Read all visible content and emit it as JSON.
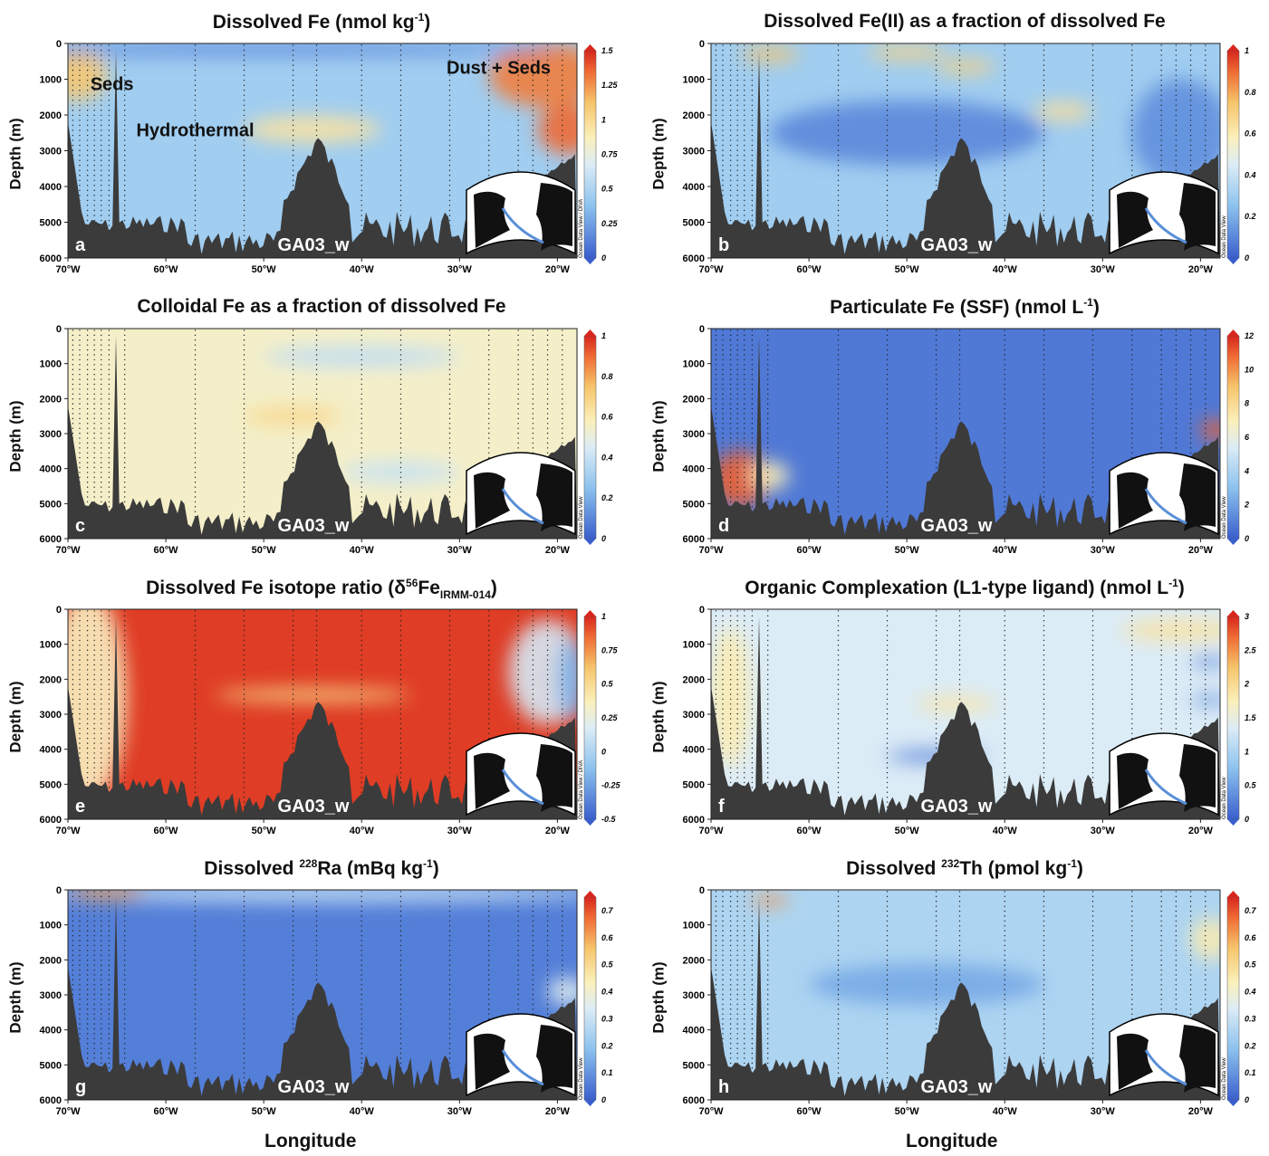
{
  "figure": {
    "x_axis_label": "Longitude",
    "y_axis_label": "Depth (m)"
  },
  "chart_data": [
    {
      "id": "a",
      "type": "heatmap",
      "title": "Dissolved Fe (nmol kg⁻¹)",
      "title_parts": {
        "pre": "Dissolved Fe (nmol kg",
        "sup": "-1",
        "post": ")"
      },
      "ylabel": "Depth (m)",
      "section": "GA03_w",
      "x_ticks": [
        "70°W",
        "60°W",
        "50°W",
        "40°W",
        "30°W",
        "20°W"
      ],
      "y_ticks": [
        0,
        1000,
        2000,
        3000,
        4000,
        5000,
        6000
      ],
      "xlim": [
        -70,
        -18
      ],
      "ylim": [
        6000,
        0
      ],
      "colorbar": {
        "min": 0,
        "max": 1.5,
        "ticks": [
          "0",
          "0.25",
          "0.5",
          "0.75",
          "1",
          "1.25",
          "1.5"
        ],
        "caption": "Ocean Data View / DIVA",
        "scale": "bwr"
      },
      "annotations": [
        "Seds",
        "Hydrothermal",
        "Dust + Seds"
      ],
      "background_value": 0.45,
      "features": [
        {
          "lon": -69,
          "depth": 900,
          "rx": 3,
          "ry": 700,
          "v": 1.1
        },
        {
          "lon": -45,
          "depth": 2400,
          "rx": 7,
          "ry": 380,
          "v": 0.95
        },
        {
          "lon": -21,
          "depth": 900,
          "rx": 6,
          "ry": 900,
          "v": 1.3
        },
        {
          "lon": -19,
          "depth": 2400,
          "rx": 3,
          "ry": 700,
          "v": 1.35
        },
        {
          "lon": -50,
          "depth": 150,
          "rx": 30,
          "ry": 180,
          "v": 0.15
        }
      ]
    },
    {
      "id": "b",
      "type": "heatmap",
      "title": "Dissolved Fe(II) as a fraction of dissolved Fe",
      "title_parts": {
        "pre": "Dissolved Fe(II) as a fraction of dissolved Fe",
        "sup": "",
        "post": ""
      },
      "ylabel": "Depth (m)",
      "section": "GA03_w",
      "x_ticks": [
        "70°W",
        "60°W",
        "50°W",
        "40°W",
        "30°W",
        "20°W"
      ],
      "y_ticks": [
        0,
        1000,
        2000,
        3000,
        4000,
        5000,
        6000
      ],
      "xlim": [
        -70,
        -18
      ],
      "ylim": [
        6000,
        0
      ],
      "colorbar": {
        "min": 0,
        "max": 1,
        "ticks": [
          "0",
          "0.2",
          "0.4",
          "0.6",
          "0.8",
          "1"
        ],
        "caption": "Ocean Data View",
        "scale": "bwr"
      },
      "annotations": [],
      "background_value": 0.3,
      "features": [
        {
          "lon": -64,
          "depth": 300,
          "rx": 3,
          "ry": 200,
          "v": 0.75
        },
        {
          "lon": -50,
          "depth": 250,
          "rx": 4,
          "ry": 200,
          "v": 0.7
        },
        {
          "lon": -44,
          "depth": 650,
          "rx": 3,
          "ry": 200,
          "v": 0.7
        },
        {
          "lon": -34,
          "depth": 1900,
          "rx": 3,
          "ry": 250,
          "v": 0.65
        },
        {
          "lon": -50,
          "depth": 2500,
          "rx": 14,
          "ry": 900,
          "v": 0.1
        },
        {
          "lon": -22,
          "depth": 2500,
          "rx": 5,
          "ry": 1500,
          "v": 0.12
        }
      ]
    },
    {
      "id": "c",
      "type": "heatmap",
      "title": "Colloidal Fe as a fraction of dissolved Fe",
      "title_parts": {
        "pre": "Colloidal Fe as a fraction of dissolved Fe",
        "sup": "",
        "post": ""
      },
      "ylabel": "Depth (m)",
      "section": "GA03_w",
      "x_ticks": [
        "70°W",
        "60°W",
        "50°W",
        "40°W",
        "30°W",
        "20°W"
      ],
      "y_ticks": [
        0,
        1000,
        2000,
        3000,
        4000,
        5000,
        6000
      ],
      "xlim": [
        -70,
        -18
      ],
      "ylim": [
        6000,
        0
      ],
      "colorbar": {
        "min": 0,
        "max": 1,
        "ticks": [
          "0",
          "0.2",
          "0.4",
          "0.6",
          "0.8",
          "1"
        ],
        "caption": "Ocean Data View",
        "scale": "bwr"
      },
      "annotations": [],
      "background_value": 0.55,
      "features": [
        {
          "lon": -40,
          "depth": 800,
          "rx": 10,
          "ry": 300,
          "v": 0.38
        },
        {
          "lon": -36,
          "depth": 4100,
          "rx": 6,
          "ry": 300,
          "v": 0.4
        },
        {
          "lon": -47,
          "depth": 2500,
          "rx": 5,
          "ry": 250,
          "v": 0.68
        }
      ]
    },
    {
      "id": "d",
      "type": "heatmap",
      "title": "Particulate Fe (SSF) (nmol L⁻¹)",
      "title_parts": {
        "pre": "Particulate Fe (SSF) (nmol L",
        "sup": "-1",
        "post": ")"
      },
      "ylabel": "Depth (m)",
      "section": "GA03_w",
      "x_ticks": [
        "70°W",
        "60°W",
        "50°W",
        "40°W",
        "30°W",
        "20°W"
      ],
      "y_ticks": [
        0,
        1000,
        2000,
        3000,
        4000,
        5000,
        6000
      ],
      "xlim": [
        -70,
        -18
      ],
      "ylim": [
        6000,
        0
      ],
      "colorbar": {
        "min": 0,
        "max": 12,
        "ticks": [
          "0",
          "2",
          "4",
          "6",
          "8",
          "10",
          "12"
        ],
        "caption": "Ocean Data View",
        "scale": "bwr"
      },
      "annotations": [],
      "background_value": 0.8,
      "features": [
        {
          "lon": -67,
          "depth": 4300,
          "rx": 3,
          "ry": 800,
          "v": 11
        },
        {
          "lon": -18.5,
          "depth": 2900,
          "rx": 1.5,
          "ry": 300,
          "v": 11
        },
        {
          "lon": -64,
          "depth": 4200,
          "rx": 2,
          "ry": 400,
          "v": 7
        }
      ]
    },
    {
      "id": "e",
      "type": "heatmap",
      "title": "Dissolved Fe isotope ratio (δ56FeIRMM-014)",
      "title_parts": {
        "pre": "Dissolved Fe isotope ratio (δ",
        "sup": "56",
        "post": "Fe",
        "sub": "IRMM-014",
        "end": ")"
      },
      "ylabel": "Depth (m)",
      "section": "GA03_w",
      "x_ticks": [
        "70°W",
        "60°W",
        "50°W",
        "40°W",
        "30°W",
        "20°W"
      ],
      "y_ticks": [
        0,
        1000,
        2000,
        3000,
        4000,
        5000,
        6000
      ],
      "xlim": [
        -70,
        -18
      ],
      "ylim": [
        6000,
        0
      ],
      "colorbar": {
        "min": -0.5,
        "max": 1,
        "ticks": [
          "-0.5",
          "-0.25",
          "0",
          "0.25",
          "0.5",
          "0.75",
          "1"
        ],
        "caption": "Ocean Data View / DIVA",
        "scale": "bwr"
      },
      "annotations": [],
      "background_value": 0.95,
      "features": [
        {
          "lon": -68,
          "depth": 2500,
          "rx": 4,
          "ry": 3000,
          "v": 0.35
        },
        {
          "lon": -21,
          "depth": 1800,
          "rx": 4,
          "ry": 1500,
          "v": 0.15
        },
        {
          "lon": -18.5,
          "depth": 2000,
          "rx": 1.5,
          "ry": 1200,
          "v": -0.2
        },
        {
          "lon": -45,
          "depth": 2450,
          "rx": 10,
          "ry": 200,
          "v": 0.55
        }
      ]
    },
    {
      "id": "f",
      "type": "heatmap",
      "title": "Organic Complexation (L1-type ligand) (nmol L⁻¹)",
      "title_parts": {
        "pre": "Organic Complexation (L1-type ligand) (nmol L",
        "sup": "-1",
        "post": ")"
      },
      "ylabel": "Depth (m)",
      "section": "GA03_w",
      "x_ticks": [
        "70°W",
        "60°W",
        "50°W",
        "40°W",
        "30°W",
        "20°W"
      ],
      "y_ticks": [
        0,
        1000,
        2000,
        3000,
        4000,
        5000,
        6000
      ],
      "xlim": [
        -70,
        -18
      ],
      "ylim": [
        6000,
        0
      ],
      "colorbar": {
        "min": 0,
        "max": 3,
        "ticks": [
          "0",
          "0.5",
          "1",
          "1.5",
          "2",
          "2.5",
          "3"
        ],
        "caption": "Ocean Data View",
        "scale": "bwr"
      },
      "annotations": [],
      "background_value": 1.35,
      "features": [
        {
          "lon": -68,
          "depth": 2500,
          "rx": 2,
          "ry": 2000,
          "v": 1.8
        },
        {
          "lon": -45,
          "depth": 2700,
          "rx": 4,
          "ry": 200,
          "v": 1.9
        },
        {
          "lon": -47,
          "depth": 4200,
          "rx": 5,
          "ry": 180,
          "v": 0.25
        },
        {
          "lon": -19,
          "depth": 1500,
          "rx": 2,
          "ry": 150,
          "v": 0.35
        },
        {
          "lon": -19,
          "depth": 2600,
          "rx": 2,
          "ry": 150,
          "v": 0.4
        },
        {
          "lon": -22,
          "depth": 600,
          "rx": 6,
          "ry": 300,
          "v": 1.9
        }
      ]
    },
    {
      "id": "g",
      "type": "heatmap",
      "title": "Dissolved 228Ra (mBq kg⁻¹)",
      "title_parts": {
        "pre": "Dissolved ",
        "sup": "228",
        "post": "Ra (mBq kg",
        "sup2": "-1",
        "end": ")"
      },
      "ylabel": "Depth (m)",
      "section": "GA03_w",
      "x_ticks": [
        "70°W",
        "60°W",
        "50°W",
        "40°W",
        "30°W",
        "20°W"
      ],
      "y_ticks": [
        0,
        1000,
        2000,
        3000,
        4000,
        5000,
        6000
      ],
      "xlim": [
        -70,
        -18
      ],
      "ylim": [
        6000,
        0
      ],
      "colorbar": {
        "min": 0,
        "max": 0.75,
        "ticks": [
          "0",
          "0.1",
          "0.2",
          "0.3",
          "0.4",
          "0.5",
          "0.6",
          "0.7"
        ],
        "caption": "Ocean Data View",
        "scale": "bwr"
      },
      "annotations": [],
      "background_value": 0.06,
      "features": [
        {
          "lon": -44,
          "depth": 80,
          "rx": 30,
          "ry": 260,
          "v": 0.3
        },
        {
          "lon": -66,
          "depth": 60,
          "rx": 4,
          "ry": 200,
          "v": 0.6
        },
        {
          "lon": -19,
          "depth": 2900,
          "rx": 2,
          "ry": 400,
          "v": 0.35
        }
      ]
    },
    {
      "id": "h",
      "type": "heatmap",
      "title": "Dissolved 232Th (pmol kg⁻¹)",
      "title_parts": {
        "pre": "Dissolved ",
        "sup": "232",
        "post": "Th (pmol kg",
        "sup2": "-1",
        "end": ")"
      },
      "ylabel": "Depth (m)",
      "section": "GA03_w",
      "x_ticks": [
        "70°W",
        "60°W",
        "50°W",
        "40°W",
        "30°W",
        "20°W"
      ],
      "y_ticks": [
        0,
        1000,
        2000,
        3000,
        4000,
        5000,
        6000
      ],
      "xlim": [
        -70,
        -18
      ],
      "ylim": [
        6000,
        0
      ],
      "colorbar": {
        "min": 0,
        "max": 0.75,
        "ticks": [
          "0",
          "0.1",
          "0.2",
          "0.3",
          "0.4",
          "0.5",
          "0.6",
          "0.7"
        ],
        "caption": "Ocean Data View",
        "scale": "bwr"
      },
      "annotations": [],
      "background_value": 0.25,
      "features": [
        {
          "lon": -64,
          "depth": 300,
          "rx": 2,
          "ry": 150,
          "v": 0.62
        },
        {
          "lon": -48,
          "depth": 2700,
          "rx": 12,
          "ry": 600,
          "v": 0.14
        },
        {
          "lon": -19,
          "depth": 1400,
          "rx": 2,
          "ry": 600,
          "v": 0.45
        }
      ]
    }
  ]
}
